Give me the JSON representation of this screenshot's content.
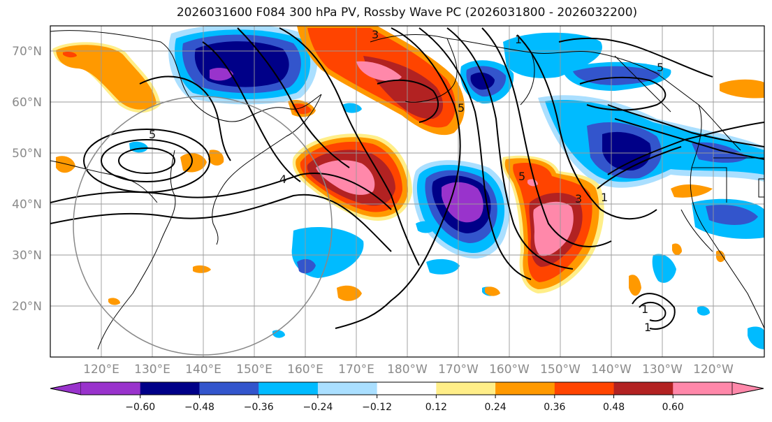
{
  "title": "2026031600 F084 300 hPa PV, Rossby Wave PC (2026031800 - 2026032200)",
  "map": {
    "lat_labels": [
      "70°N",
      "60°N",
      "50°N",
      "40°N",
      "30°N",
      "20°N"
    ],
    "lon_labels": [
      "120°E",
      "130°E",
      "140°E",
      "150°E",
      "160°E",
      "170°E",
      "180°W",
      "170°W",
      "160°W",
      "150°W",
      "140°W",
      "130°W",
      "120°W"
    ],
    "contour_labels": [
      "3",
      "1",
      "5",
      "5",
      "4",
      "5",
      "3",
      "1",
      "1",
      "5",
      "1"
    ],
    "colors": {
      "neg_0_60": "#9933cc",
      "neg_0_48": "#000088",
      "neg_0_36": "#3355cc",
      "neg_0_24": "#00bbff",
      "neg_0_12": "#aadfff",
      "pos_0_12": "#ffee88",
      "pos_0_24": "#ff9900",
      "pos_0_36": "#ff4400",
      "pos_0_48": "#b22222",
      "pos_0_60": "#ff88aa"
    }
  },
  "colorbar": {
    "tick_labels": [
      "−0.60",
      "−0.48",
      "−0.36",
      "−0.24",
      "−0.12",
      "0.12",
      "0.24",
      "0.36",
      "0.48",
      "0.60"
    ],
    "colors": [
      "#9933cc",
      "#000088",
      "#3355cc",
      "#00bbff",
      "#aadfff",
      "#ffffff",
      "#ffee88",
      "#ff9900",
      "#ff4400",
      "#b22222",
      "#ff88aa"
    ]
  }
}
